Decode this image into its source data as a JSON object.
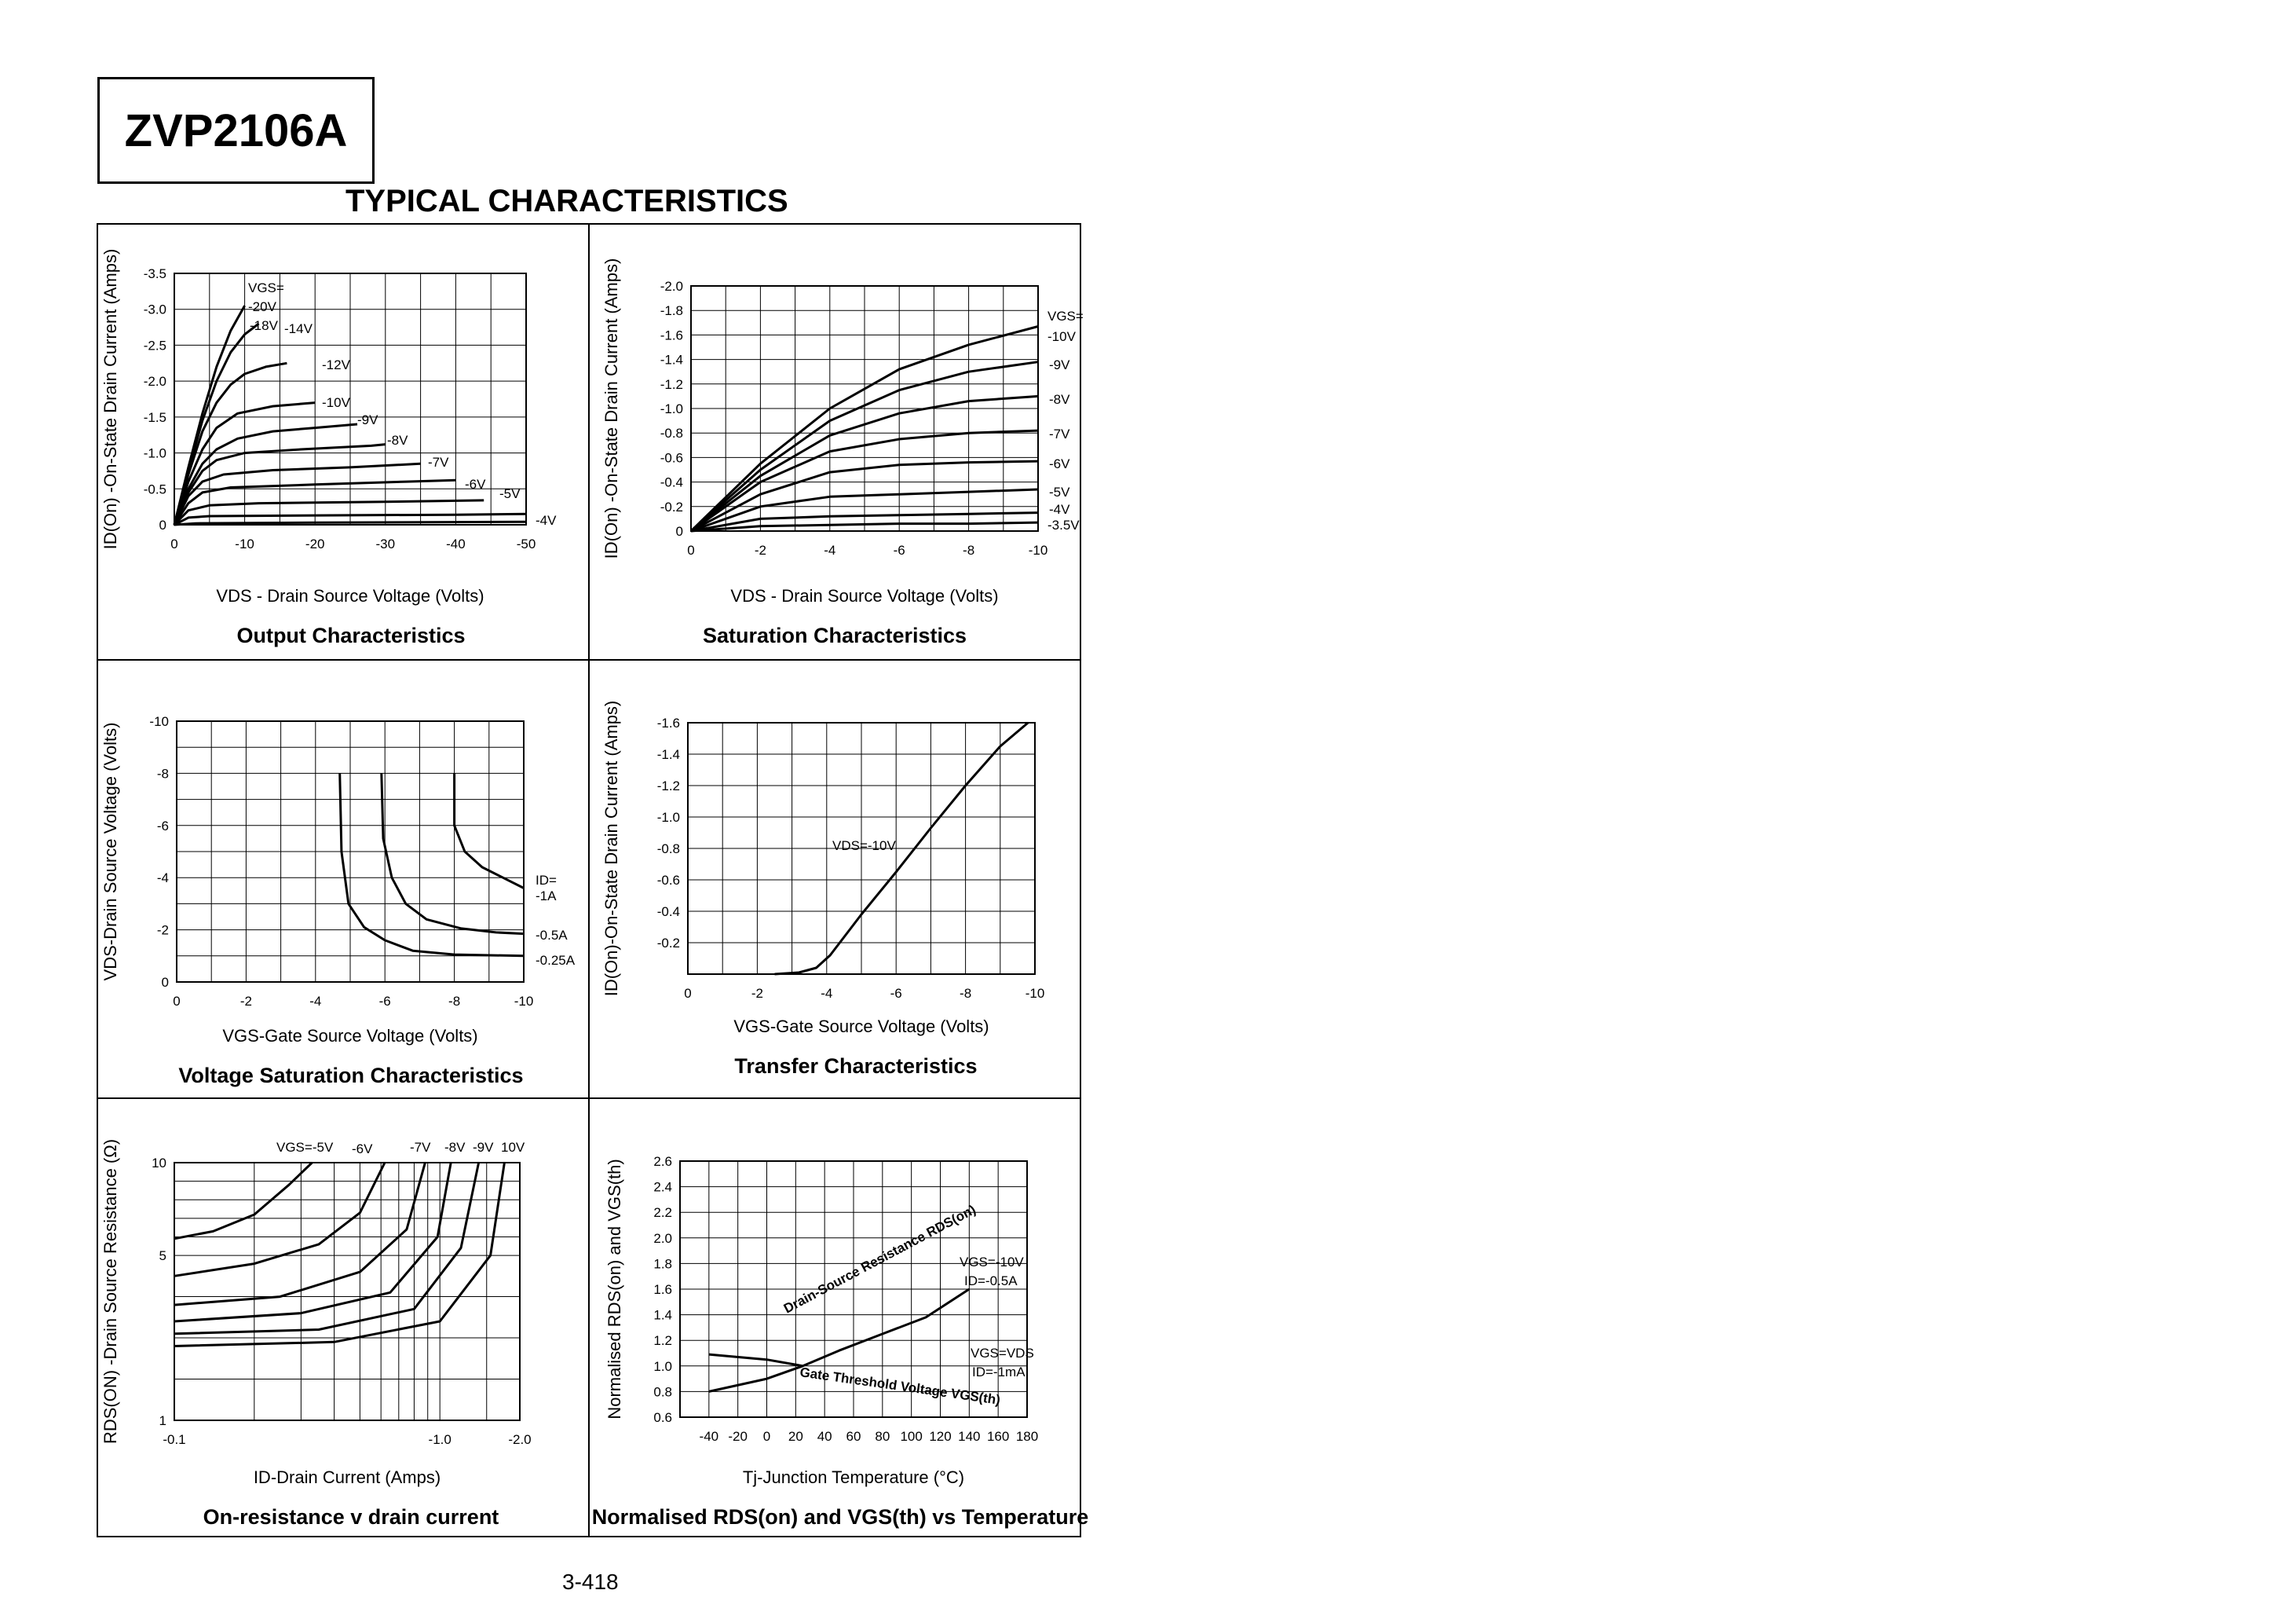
{
  "header": {
    "part_number": "ZVP2106A",
    "section_title": "TYPICAL CHARACTERISTICS"
  },
  "footer": {
    "page_number": "3-418"
  },
  "chart_data": [
    {
      "id": "output",
      "type": "line",
      "title": "Output Characteristics",
      "xlabel": "VDS - Drain Source Voltage (Volts)",
      "ylabel": "ID(On) -On-State Drain Current (Amps)",
      "xlim": [
        0,
        -50
      ],
      "ylim": [
        0,
        -3.5
      ],
      "xticks": [
        "0",
        "-10",
        "-20",
        "-30",
        "-40",
        "-50"
      ],
      "yticks": [
        "0",
        "-0.5",
        "-1.0",
        "-1.5",
        "-2.0",
        "-2.5",
        "-3.0",
        "-3.5"
      ],
      "legend_header": "VGS=",
      "series": [
        {
          "name": "-20V",
          "x": [
            0,
            -2,
            -4,
            -6,
            -8,
            -10
          ],
          "y": [
            0,
            -0.8,
            -1.55,
            -2.2,
            -2.7,
            -3.05
          ]
        },
        {
          "name": "-18V",
          "x": [
            0,
            -2,
            -4,
            -6,
            -8,
            -10,
            -12
          ],
          "y": [
            0,
            -0.75,
            -1.45,
            -2.0,
            -2.4,
            -2.65,
            -2.8
          ]
        },
        {
          "name": "-14V",
          "x": [
            0,
            -2,
            -4,
            -6,
            -8,
            -10,
            -13,
            -16
          ],
          "y": [
            0,
            -0.7,
            -1.3,
            -1.7,
            -1.95,
            -2.1,
            -2.2,
            -2.25
          ]
        },
        {
          "name": "-12V",
          "x": [
            0,
            -2,
            -4,
            -6,
            -9,
            -14,
            -20
          ],
          "y": [
            0,
            -0.6,
            -1.05,
            -1.35,
            -1.55,
            -1.65,
            -1.7
          ]
        },
        {
          "name": "-10V",
          "x": [
            0,
            -2,
            -4,
            -6,
            -9,
            -14,
            -20,
            -26
          ],
          "y": [
            0,
            -0.5,
            -0.85,
            -1.05,
            -1.2,
            -1.3,
            -1.35,
            -1.4
          ]
        },
        {
          "name": "-9V",
          "x": [
            0,
            -2,
            -4,
            -6,
            -10,
            -18,
            -28,
            -30
          ],
          "y": [
            0,
            -0.45,
            -0.75,
            -0.9,
            -1.0,
            -1.05,
            -1.1,
            -1.12
          ]
        },
        {
          "name": "-8V",
          "x": [
            0,
            -2,
            -4,
            -7,
            -14,
            -25,
            -35
          ],
          "y": [
            0,
            -0.4,
            -0.6,
            -0.7,
            -0.76,
            -0.8,
            -0.85
          ]
        },
        {
          "name": "-7V",
          "x": [
            0,
            -2,
            -4,
            -8,
            -20,
            -33,
            -40
          ],
          "y": [
            0,
            -0.3,
            -0.45,
            -0.52,
            -0.56,
            -0.6,
            -0.62
          ]
        },
        {
          "name": "-6V",
          "x": [
            0,
            -2,
            -5,
            -12,
            -30,
            -44
          ],
          "y": [
            0,
            -0.2,
            -0.27,
            -0.3,
            -0.32,
            -0.34
          ]
        },
        {
          "name": "-5V",
          "x": [
            0,
            -2,
            -5,
            -20,
            -40,
            -50
          ],
          "y": [
            0,
            -0.1,
            -0.12,
            -0.13,
            -0.14,
            -0.15
          ]
        },
        {
          "name": "-4V",
          "x": [
            0,
            -3,
            -20,
            -50
          ],
          "y": [
            0,
            -0.02,
            -0.03,
            -0.04
          ]
        }
      ]
    },
    {
      "id": "saturation",
      "type": "line",
      "title": "Saturation Characteristics",
      "xlabel": "VDS - Drain Source Voltage (Volts)",
      "ylabel": "ID(On) -On-State Drain Current (Amps)",
      "xlim": [
        0,
        -10
      ],
      "ylim": [
        0,
        -2.0
      ],
      "xticks": [
        "0",
        "-2",
        "-4",
        "-6",
        "-8",
        "-10"
      ],
      "yticks": [
        "0",
        "-0.2",
        "-0.4",
        "-0.6",
        "-0.8",
        "-1.0",
        "-1.2",
        "-1.4",
        "-1.6",
        "-1.8",
        "-2.0"
      ],
      "legend_header": "VGS=",
      "series": [
        {
          "name": "-10V",
          "x": [
            0,
            -2,
            -4,
            -6,
            -8,
            -10
          ],
          "y": [
            0,
            -0.55,
            -1.0,
            -1.32,
            -1.52,
            -1.67
          ]
        },
        {
          "name": "-9V",
          "x": [
            0,
            -2,
            -4,
            -6,
            -8,
            -10
          ],
          "y": [
            0,
            -0.5,
            -0.9,
            -1.15,
            -1.3,
            -1.38
          ]
        },
        {
          "name": "-8V",
          "x": [
            0,
            -2,
            -4,
            -6,
            -8,
            -10
          ],
          "y": [
            0,
            -0.45,
            -0.78,
            -0.96,
            -1.06,
            -1.1
          ]
        },
        {
          "name": "-7V",
          "x": [
            0,
            -2,
            -4,
            -6,
            -8,
            -10
          ],
          "y": [
            0,
            -0.4,
            -0.65,
            -0.75,
            -0.8,
            -0.82
          ]
        },
        {
          "name": "-6V",
          "x": [
            0,
            -2,
            -4,
            -6,
            -8,
            -10
          ],
          "y": [
            0,
            -0.3,
            -0.48,
            -0.54,
            -0.56,
            -0.57
          ]
        },
        {
          "name": "-5V",
          "x": [
            0,
            -2,
            -4,
            -6,
            -8,
            -10
          ],
          "y": [
            0,
            -0.2,
            -0.28,
            -0.3,
            -0.32,
            -0.34
          ]
        },
        {
          "name": "-4V",
          "x": [
            0,
            -2,
            -4,
            -6,
            -8,
            -10
          ],
          "y": [
            0,
            -0.1,
            -0.12,
            -0.13,
            -0.14,
            -0.15
          ]
        },
        {
          "name": "-3.5V",
          "x": [
            0,
            -2,
            -4,
            -6,
            -8,
            -10
          ],
          "y": [
            0,
            -0.04,
            -0.05,
            -0.06,
            -0.06,
            -0.07
          ]
        }
      ]
    },
    {
      "id": "voltage_saturation",
      "type": "line",
      "title": "Voltage Saturation Characteristics",
      "xlabel": "VGS-Gate Source Voltage  (Volts)",
      "ylabel": "VDS-Drain Source  Voltage (Volts)",
      "xlim": [
        0,
        -10
      ],
      "ylim": [
        0,
        -10
      ],
      "xticks": [
        "0",
        "-2",
        "-4",
        "-6",
        "-8",
        "-10"
      ],
      "yticks": [
        "0",
        "-2",
        "-4",
        "-6",
        "-8",
        "-10"
      ],
      "legend_header": "ID=",
      "series": [
        {
          "name": "-1A",
          "x": [
            -8.0,
            -8.0,
            -8.3,
            -8.8,
            -9.4,
            -10.0
          ],
          "y": [
            -8.0,
            -6.0,
            -5.0,
            -4.4,
            -4.0,
            -3.6
          ]
        },
        {
          "name": "-0.5A",
          "x": [
            -5.9,
            -5.95,
            -6.2,
            -6.6,
            -7.2,
            -8.2,
            -9.2,
            -10.0
          ],
          "y": [
            -8.0,
            -5.5,
            -4.0,
            -3.0,
            -2.4,
            -2.05,
            -1.9,
            -1.85
          ]
        },
        {
          "name": "-0.25A",
          "x": [
            -4.7,
            -4.75,
            -4.95,
            -5.4,
            -6.0,
            -6.8,
            -8.0,
            -10.0
          ],
          "y": [
            -8.0,
            -5.0,
            -3.0,
            -2.1,
            -1.6,
            -1.2,
            -1.05,
            -1.0
          ]
        }
      ]
    },
    {
      "id": "transfer",
      "type": "line",
      "title": "Transfer Characteristics",
      "xlabel": "VGS-Gate Source Voltage (Volts)",
      "ylabel": "ID(On)-On-State Drain Current  (Amps)",
      "xlim": [
        0,
        -10
      ],
      "ylim": [
        0,
        -1.6
      ],
      "xticks": [
        "0",
        "-2",
        "-4",
        "-6",
        "-8",
        "-10"
      ],
      "yticks": [
        "-0.2",
        "-0.4",
        "-0.6",
        "-0.8",
        "-1.0",
        "-1.2",
        "-1.4",
        "-1.6"
      ],
      "annotation": "VDS=-10V",
      "series": [
        {
          "name": "VDS=-10V",
          "x": [
            -2.5,
            -3.2,
            -3.7,
            -4.1,
            -5.0,
            -6.0,
            -7.0,
            -8.0,
            -9.0,
            -9.8
          ],
          "y": [
            0,
            -0.01,
            -0.04,
            -0.12,
            -0.38,
            -0.65,
            -0.93,
            -1.2,
            -1.45,
            -1.6
          ]
        }
      ]
    },
    {
      "id": "on_resistance",
      "type": "line",
      "title": "On-resistance v drain current",
      "xlabel": "ID-Drain Current (Amps)",
      "ylabel": "RDS(ON) -Drain Source Resistance (Ω)",
      "xscale": "log",
      "xlim": [
        -0.1,
        -2.0
      ],
      "ylim": [
        1,
        10
      ],
      "xticks": [
        "-0.1",
        "-1.0",
        "-2.0"
      ],
      "yticks": [
        "1",
        "5",
        "10"
      ],
      "series": [
        {
          "name": "VGS=-5V",
          "x": [
            -0.1,
            -0.14,
            -0.2,
            -0.27,
            -0.33
          ],
          "y": [
            5.9,
            6.3,
            7.2,
            8.8,
            10.0
          ]
        },
        {
          "name": "-6V",
          "x": [
            -0.1,
            -0.2,
            -0.35,
            -0.5,
            -0.62
          ],
          "y": [
            4.5,
            4.8,
            5.6,
            7.3,
            10.0
          ]
        },
        {
          "name": "-7V",
          "x": [
            -0.1,
            -0.25,
            -0.5,
            -0.75,
            -0.88
          ],
          "y": [
            3.8,
            4.0,
            4.6,
            6.4,
            10.0
          ]
        },
        {
          "name": "-8V",
          "x": [
            -0.1,
            -0.3,
            -0.65,
            -0.98,
            -1.1
          ],
          "y": [
            3.4,
            3.6,
            4.1,
            6.0,
            10.0
          ]
        },
        {
          "name": "-9V",
          "x": [
            -0.1,
            -0.35,
            -0.8,
            -1.2,
            -1.4
          ],
          "y": [
            3.1,
            3.2,
            3.7,
            5.4,
            10.0
          ]
        },
        {
          "name": "10V",
          "x": [
            -0.1,
            -0.4,
            -1.0,
            -1.55,
            -1.75
          ],
          "y": [
            2.8,
            2.9,
            3.4,
            5.0,
            10.0
          ]
        }
      ]
    },
    {
      "id": "normalised",
      "type": "line",
      "title": "Normalised RDS(on) and VGS(th) vs Temperature",
      "xlabel": "Tj-Junction Temperature (°C)",
      "ylabel": "Normalised RDS(on) and VGS(th)",
      "xlim": [
        -60,
        180
      ],
      "ylim": [
        0.6,
        2.6
      ],
      "xticks": [
        "-40",
        "-20",
        "0",
        "20",
        "40",
        "60",
        "80",
        "100",
        "120",
        "140",
        "160",
        "180"
      ],
      "yticks": [
        "0.6",
        "0.8",
        "1.0",
        "1.2",
        "1.4",
        "1.6",
        "1.8",
        "2.0",
        "2.2",
        "2.4",
        "2.6"
      ],
      "series": [
        {
          "name": "Drain-Source Resistance RDS(on)",
          "x": [
            -40,
            0,
            25,
            50,
            80,
            110,
            140
          ],
          "y": [
            0.8,
            0.9,
            1.0,
            1.12,
            1.25,
            1.38,
            1.6
          ]
        },
        {
          "name": "Gate Threshold Voltage VGS(th)",
          "x": [
            -40,
            0,
            25
          ],
          "y": [
            1.09,
            1.05,
            1.0
          ]
        }
      ],
      "annotations": {
        "rds_curve_label": "Drain-Source Resistance RDS(on)",
        "vgs_curve_label": "Gate Threshold Voltage VGS(th)",
        "rds_cond_1": "VGS=-10V",
        "rds_cond_2": "ID=-0.5A",
        "vgs_cond_1": "VGS=VDS",
        "vgs_cond_2": "ID=-1mA"
      }
    }
  ]
}
